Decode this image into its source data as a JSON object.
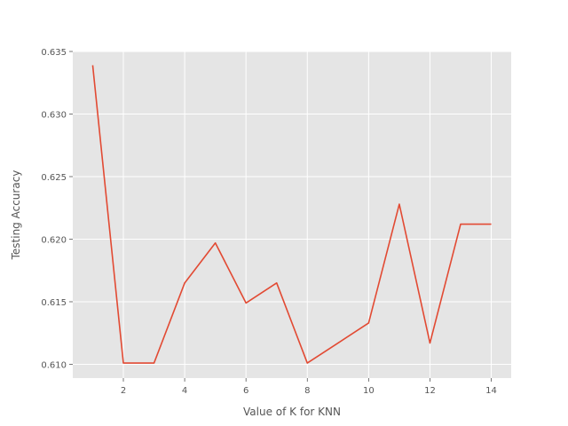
{
  "chart_data": {
    "type": "line",
    "title": "",
    "xlabel": "Value of K for KNN",
    "ylabel": "Testing Accuracy",
    "x": [
      1,
      2,
      3,
      4,
      5,
      6,
      7,
      8,
      9,
      10,
      11,
      12,
      13,
      14
    ],
    "series": [
      {
        "values": [
          0.6339,
          0.6101,
          0.6101,
          0.6165,
          0.6197,
          0.6149,
          0.6165,
          0.6101,
          0.6117,
          0.6133,
          0.6228,
          0.6117,
          0.6212,
          0.6212
        ],
        "color": "#E24A33"
      }
    ],
    "xlim": [
      0.35,
      14.65
    ],
    "ylim": [
      0.6089,
      0.635
    ],
    "xticks": [
      2,
      4,
      6,
      8,
      10,
      12,
      14
    ],
    "xtick_labels": [
      "2",
      "4",
      "6",
      "8",
      "10",
      "12",
      "14"
    ],
    "yticks": [
      0.61,
      0.615,
      0.62,
      0.625,
      0.63,
      0.635
    ],
    "ytick_labels": [
      "0.610",
      "0.615",
      "0.620",
      "0.625",
      "0.630",
      "0.635"
    ],
    "grid": true,
    "style": {
      "plot_background": "#E5E5E5",
      "grid_color": "#FFFFFF",
      "text_color": "#555555"
    }
  }
}
